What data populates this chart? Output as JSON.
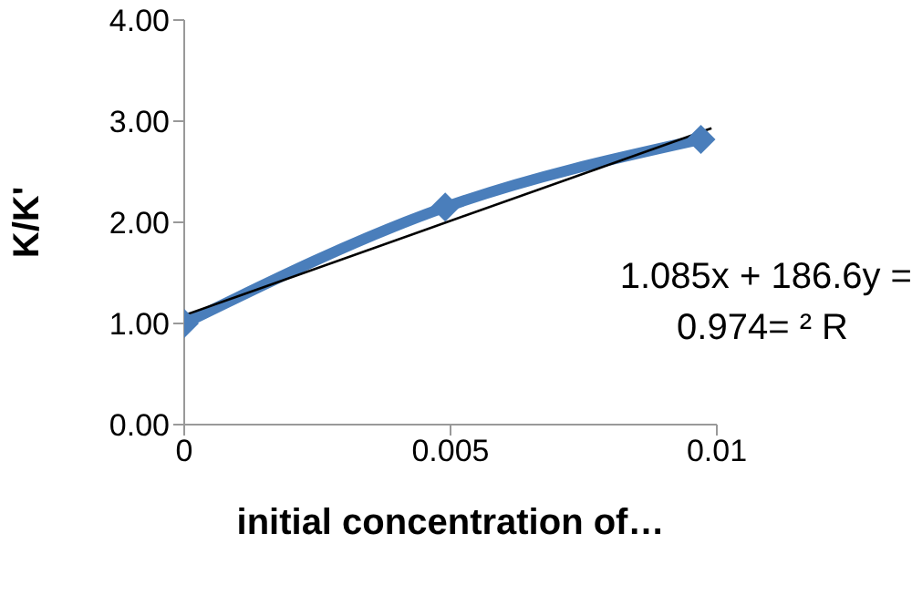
{
  "chart_data": {
    "type": "line",
    "xlabel": "initial concentration of…",
    "ylabel": "K/K'",
    "xlim": [
      0,
      0.01
    ],
    "xticks": [
      0,
      0.005,
      0.01
    ],
    "ylim": [
      0,
      4
    ],
    "yticks": [
      {
        "value": 0,
        "label": "0.00"
      },
      {
        "value": 1,
        "label": "1.00"
      },
      {
        "value": 2,
        "label": "2.00"
      },
      {
        "value": 3,
        "label": "3.00"
      },
      {
        "value": 4,
        "label": "4.00"
      }
    ],
    "grid": false,
    "marker": "diamond",
    "line_style": "solid",
    "series": [
      {
        "color": "#4a7ebb",
        "x": [
          0,
          0.0049,
          0.0097
        ],
        "values": [
          1.0,
          2.15,
          2.82
        ]
      },
      {
        "type": "line",
        "color": "#000000",
        "marker": "none",
        "x": [
          0,
          0.0099
        ],
        "values": [
          1.08,
          2.93
        ]
      }
    ],
    "annotations": [
      "1.085x + 186.6y =",
      "0.974= ² R"
    ]
  }
}
